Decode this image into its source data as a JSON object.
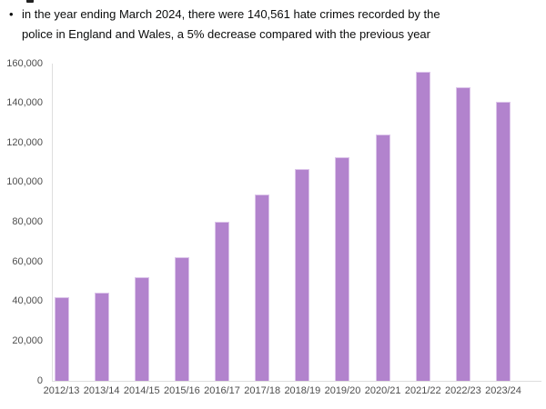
{
  "intro": {
    "bullet_marker": "•",
    "bullet_text": "in the year ending March 2024, there were 140,561 hate crimes recorded by the police in England and Wales, a 5% decrease compared with the previous year"
  },
  "chart_data": {
    "type": "bar",
    "title": "",
    "xlabel": "",
    "ylabel": "",
    "categories": [
      "2012/13",
      "2013/14",
      "2014/15",
      "2015/16",
      "2016/17",
      "2017/18",
      "2018/19",
      "2019/20",
      "2020/21",
      "2021/22",
      "2022/23",
      "2023/24"
    ],
    "values": [
      42255,
      44480,
      52465,
      62518,
      80393,
      94098,
      106800,
      112800,
      124091,
      155841,
      148200,
      140561
    ],
    "ylim": [
      0,
      160000
    ],
    "ytick_step": 20000,
    "ytick_labels": [
      "0",
      "20,000",
      "40,000",
      "60,000",
      "80,000",
      "100,000",
      "120,000",
      "140,000",
      "160,000"
    ],
    "grid": false,
    "legend": "none",
    "colors": {
      "bar_fill": "#b283cd",
      "bar_border": "#dcc4ea",
      "axis_line": "#dedede",
      "tick_label": "#4d4d4d",
      "body_text": "#0b0c0c"
    }
  }
}
